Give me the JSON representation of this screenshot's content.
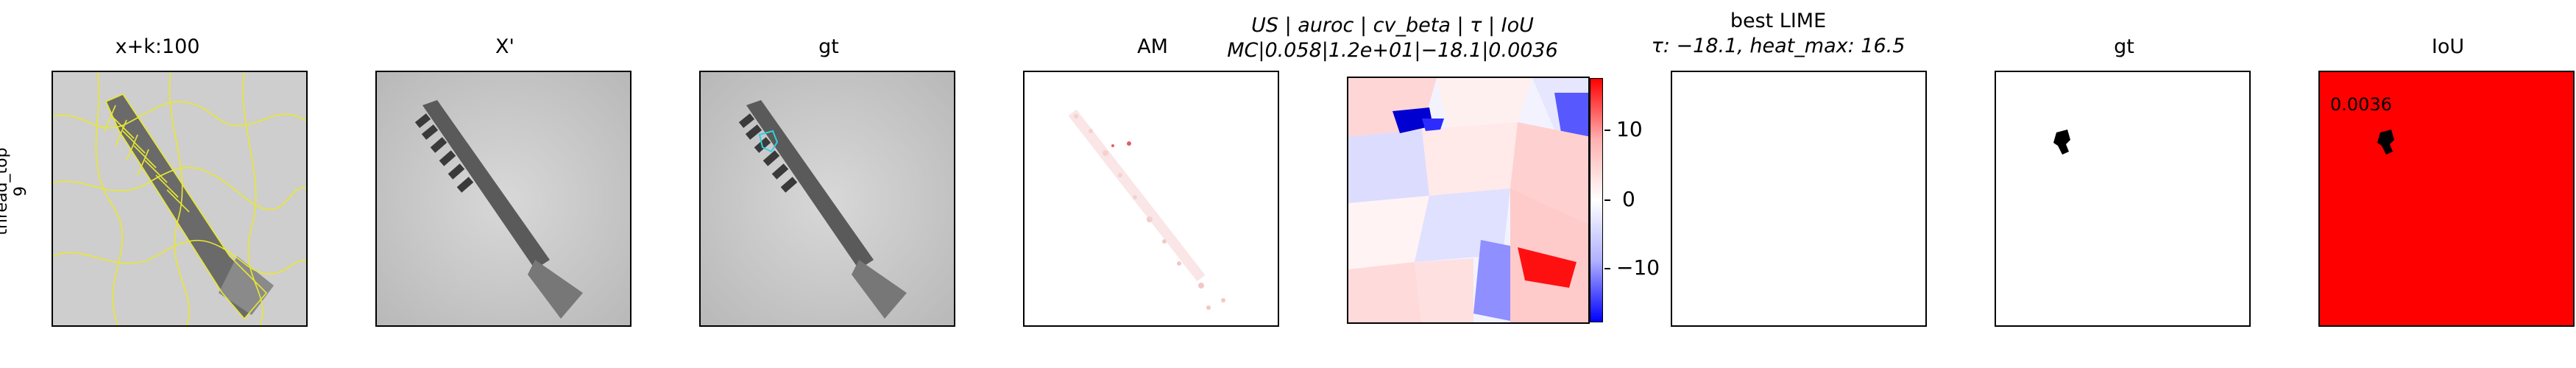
{
  "row_label": [
    "thread_top",
    "9"
  ],
  "panels": [
    {
      "title": "x+k:100"
    },
    {
      "title": "X'"
    },
    {
      "title": "gt"
    },
    {
      "title": "AM"
    },
    {
      "title_line1": "US | auroc | cv_beta | τ | IoU",
      "title_line2": "MC|0.058|1.2e+01|−18.1|0.0036"
    },
    {
      "title_line1": "best LIME",
      "title_line2": "τ: −18.1, heat_max: 16.5"
    },
    {
      "title": "gt"
    },
    {
      "title": "IoU",
      "value": "0.0036"
    }
  ],
  "colorbar": {
    "ticks": [
      "10",
      "0",
      "−10"
    ],
    "colors": {
      "max": "#ff0000",
      "mid": "#ffffff",
      "min": "#0000ff"
    }
  },
  "colors": {
    "iou_fill": "#ff0000",
    "contour": "#e8e830",
    "gt_contour": "#30d0e0"
  }
}
